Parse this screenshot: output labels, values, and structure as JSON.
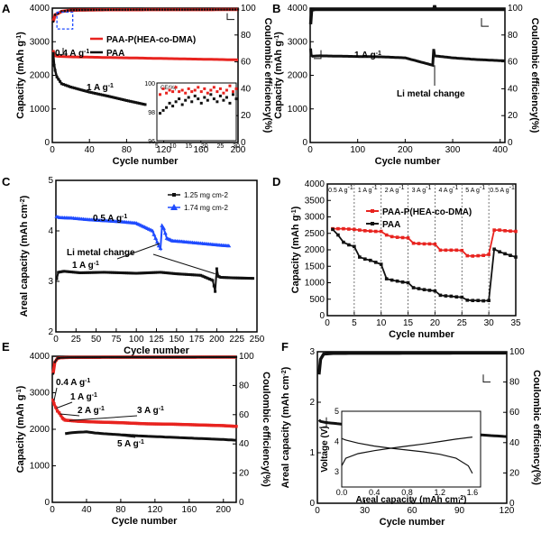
{
  "colors": {
    "red": "#e8231f",
    "black": "#111111",
    "blue": "#1f4bff",
    "axis": "#000000"
  },
  "chart_data": [
    {
      "panel": "A",
      "type": "line",
      "xlabel": "Cycle number",
      "ylabel": "Capacity (mAh g-1)",
      "y2label": "Coulombic efficiency(%)",
      "xlim": [
        0,
        200
      ],
      "ylim": [
        0,
        4000
      ],
      "y2lim": [
        0,
        100
      ],
      "xticks": [
        "0",
        "40",
        "80",
        "120",
        "160",
        "200"
      ],
      "yticks": [
        "0",
        "1000",
        "2000",
        "3000",
        "4000"
      ],
      "y2ticks": [
        "0",
        "20",
        "40",
        "60",
        "80",
        "100"
      ],
      "series": [
        {
          "name": "PAA-P(HEA-co-DMA)",
          "color": "#e8231f",
          "x": [
            1,
            2,
            3,
            5,
            10,
            20,
            40,
            60,
            80,
            100,
            120,
            140,
            160,
            180,
            200
          ],
          "y": [
            2750,
            2620,
            2580,
            2570,
            2560,
            2550,
            2540,
            2530,
            2520,
            2510,
            2500,
            2490,
            2480,
            2470,
            2460
          ]
        },
        {
          "name": "PAA",
          "color": "#111111",
          "x": [
            1,
            2,
            3,
            5,
            10,
            20,
            40,
            60,
            80,
            100
          ],
          "y": [
            2650,
            2300,
            2150,
            1950,
            1750,
            1650,
            1500,
            1380,
            1250,
            1130
          ]
        }
      ],
      "ce": {
        "x": [
          1,
          3,
          6,
          10,
          20,
          60,
          100,
          140,
          200
        ],
        "y": [
          90,
          95,
          96,
          97.5,
          98.5,
          98.8,
          98.9,
          98.9,
          99
        ]
      },
      "annotations": [
        "0.4 A g-1",
        "1 A g-1"
      ],
      "inset": {
        "ylabel": "CE(%)",
        "xlim": [
          5,
          30
        ],
        "ylim": [
          96,
          100
        ],
        "xticks": [
          "5",
          "10",
          "15",
          "20",
          "25",
          "30"
        ],
        "yticks": [
          "96",
          "98",
          "100"
        ],
        "red": [
          [
            6,
            99.2
          ],
          [
            7,
            99.6
          ],
          [
            8,
            99.3
          ],
          [
            9,
            99.5
          ],
          [
            10,
            99.4
          ],
          [
            11,
            99.7
          ],
          [
            12,
            99.4
          ],
          [
            13,
            99.5
          ],
          [
            14,
            99.3
          ],
          [
            15,
            99.6
          ],
          [
            16,
            99.4
          ],
          [
            17,
            99.5
          ],
          [
            18,
            99.7
          ],
          [
            19,
            99.4
          ],
          [
            20,
            99.6
          ],
          [
            21,
            99.3
          ],
          [
            22,
            99.5
          ],
          [
            23,
            99.7
          ],
          [
            24,
            99.4
          ],
          [
            25,
            99.6
          ],
          [
            26,
            99.3
          ],
          [
            27,
            99.5
          ],
          [
            28,
            99.8
          ],
          [
            29,
            99.4
          ],
          [
            30,
            99.6
          ]
        ],
        "black": [
          [
            6,
            97.9
          ],
          [
            7,
            98.1
          ],
          [
            8,
            98.3
          ],
          [
            9,
            98.6
          ],
          [
            10,
            98.4
          ],
          [
            11,
            98.7
          ],
          [
            12,
            98.9
          ],
          [
            13,
            98.5
          ],
          [
            14,
            98.8
          ],
          [
            15,
            99.0
          ],
          [
            16,
            98.7
          ],
          [
            17,
            99.1
          ],
          [
            18,
            98.9
          ],
          [
            19,
            98.6
          ],
          [
            20,
            99.0
          ],
          [
            21,
            98.8
          ],
          [
            22,
            99.2
          ],
          [
            23,
            98.9
          ],
          [
            24,
            98.7
          ],
          [
            25,
            99.1
          ],
          [
            26,
            98.8
          ],
          [
            27,
            99.0
          ],
          [
            28,
            98.6
          ],
          [
            29,
            99.2
          ],
          [
            30,
            98.9
          ]
        ]
      }
    },
    {
      "panel": "B",
      "type": "line",
      "xlabel": "Cycle number",
      "ylabel": "Capacity (mAh g-1)",
      "y2label": "Coulombic efficiency(%)",
      "xlim": [
        0,
        410
      ],
      "ylim": [
        0,
        4000
      ],
      "y2lim": [
        0,
        100
      ],
      "xticks": [
        "0",
        "100",
        "200",
        "300",
        "400"
      ],
      "yticks": [
        "0",
        "1000",
        "2000",
        "3000",
        "4000"
      ],
      "y2ticks": [
        "0",
        "20",
        "40",
        "60",
        "80",
        "100"
      ],
      "capacity": {
        "x": [
          1,
          2,
          5,
          20,
          60,
          100,
          150,
          200,
          258,
          260,
          262,
          300,
          350,
          410
        ],
        "y": [
          2800,
          2600,
          2570,
          2580,
          2570,
          2560,
          2550,
          2520,
          2300,
          2780,
          2580,
          2520,
          2470,
          2430
        ]
      },
      "ce": {
        "x": [
          1,
          3,
          10,
          260,
          262,
          264,
          410
        ],
        "y": [
          88,
          98.5,
          99,
          99,
          102,
          99,
          99
        ]
      },
      "annotations": [
        "1 A g-1",
        "Li metal change"
      ]
    },
    {
      "panel": "C",
      "type": "line",
      "xlabel": "Cycle number",
      "ylabel": "Areal capacity (mAh cm-2)",
      "xlim": [
        0,
        250
      ],
      "ylim": [
        2,
        5
      ],
      "xticks": [
        "0",
        "25",
        "50",
        "75",
        "100",
        "125",
        "150",
        "175",
        "200",
        "225",
        "250"
      ],
      "yticks": [
        "2",
        "3",
        "4",
        "5"
      ],
      "series": [
        {
          "name": "1.25 mg cm-2",
          "color": "#111111",
          "x": [
            1,
            3,
            10,
            30,
            60,
            100,
            130,
            150,
            180,
            195,
            198,
            200,
            202,
            205,
            220,
            245
          ],
          "y": [
            3.05,
            3.18,
            3.2,
            3.17,
            3.18,
            3.16,
            3.18,
            3.15,
            3.12,
            3.02,
            2.8,
            3.25,
            3.1,
            3.08,
            3.07,
            3.06
          ]
        },
        {
          "name": "1.74 mg cm-2",
          "color": "#1f4bff",
          "x": [
            1,
            5,
            20,
            40,
            60,
            80,
            100,
            120,
            128,
            130,
            132,
            134,
            138,
            145,
            160,
            180,
            200,
            215
          ],
          "y": [
            4.28,
            4.26,
            4.25,
            4.22,
            4.2,
            4.18,
            4.15,
            4.0,
            3.7,
            3.65,
            4.1,
            4.05,
            3.85,
            3.8,
            3.78,
            3.75,
            3.72,
            3.7
          ]
        }
      ],
      "annotations": [
        "0.5 A g-1",
        "1 A g-1",
        "Li metal change"
      ]
    },
    {
      "panel": "D",
      "type": "line",
      "xlabel": "Cycle number",
      "ylabel": "Capacity (mAh g-1)",
      "xlim": [
        0,
        35
      ],
      "ylim": [
        0,
        4000
      ],
      "xticks": [
        "0",
        "5",
        "10",
        "15",
        "20",
        "25",
        "30",
        "35"
      ],
      "yticks": [
        "0",
        "500",
        "1000",
        "1500",
        "2000",
        "2500",
        "3000",
        "3500",
        "4000"
      ],
      "rates": [
        "0.5 A g-1",
        "1 A g-1",
        "2 A g-1",
        "3 A g-1",
        "4 A g-1",
        "5 A g-1",
        "0.5 A g-1"
      ],
      "series": [
        {
          "name": "PAA-P(HEA-co-DMA)",
          "color": "#e8231f",
          "x": [
            1,
            2,
            3,
            4,
            5,
            6,
            7,
            8,
            9,
            10,
            11,
            12,
            13,
            14,
            15,
            16,
            17,
            18,
            19,
            20,
            21,
            22,
            23,
            24,
            25,
            26,
            27,
            28,
            29,
            30,
            31,
            32,
            33,
            34,
            35
          ],
          "y": [
            2640,
            2640,
            2640,
            2630,
            2620,
            2600,
            2580,
            2570,
            2560,
            2560,
            2450,
            2400,
            2380,
            2370,
            2360,
            2200,
            2190,
            2180,
            2180,
            2170,
            1990,
            1990,
            1990,
            1990,
            1980,
            1820,
            1810,
            1820,
            1830,
            1860,
            2600,
            2600,
            2580,
            2570,
            2560
          ]
        },
        {
          "name": "PAA",
          "color": "#111111",
          "x": [
            1,
            2,
            3,
            4,
            5,
            6,
            7,
            8,
            9,
            10,
            11,
            12,
            13,
            14,
            15,
            16,
            17,
            18,
            19,
            20,
            21,
            22,
            23,
            24,
            25,
            26,
            27,
            28,
            29,
            30,
            31,
            32,
            33,
            34,
            35
          ],
          "y": [
            2620,
            2450,
            2230,
            2150,
            2100,
            1780,
            1720,
            1680,
            1620,
            1560,
            1120,
            1080,
            1050,
            1020,
            1000,
            850,
            820,
            790,
            770,
            750,
            620,
            600,
            590,
            570,
            560,
            470,
            460,
            460,
            450,
            460,
            2020,
            1940,
            1880,
            1830,
            1780
          ]
        }
      ]
    },
    {
      "panel": "E",
      "type": "line",
      "xlabel": "Cycle number",
      "ylabel": "Capacity (mAh g-1)",
      "y2label": "Coulombic efficiency(%)",
      "xlim": [
        0,
        215
      ],
      "ylim": [
        0,
        4000
      ],
      "y2lim": [
        0,
        100
      ],
      "xticks": [
        "0",
        "40",
        "80",
        "120",
        "160",
        "200"
      ],
      "yticks": [
        "0",
        "1000",
        "2000",
        "3000",
        "4000"
      ],
      "y2ticks": [
        "0",
        "20",
        "40",
        "60",
        "80",
        "100"
      ],
      "series": [
        {
          "name": "red",
          "color": "#e8231f",
          "x": [
            1,
            2,
            4,
            6,
            8,
            10,
            12,
            15,
            20,
            30,
            50,
            80,
            110,
            140,
            170,
            200,
            215
          ],
          "y": [
            2800,
            2700,
            2600,
            2500,
            2450,
            2380,
            2300,
            2250,
            2240,
            2220,
            2200,
            2180,
            2150,
            2140,
            2120,
            2100,
            2080
          ]
        },
        {
          "name": "black",
          "color": "#111111",
          "x": [
            15,
            20,
            30,
            40,
            50,
            60,
            80,
            100,
            120,
            140,
            160,
            180,
            200,
            215
          ],
          "y": [
            1880,
            1900,
            1920,
            1930,
            1900,
            1880,
            1850,
            1820,
            1800,
            1780,
            1760,
            1740,
            1720,
            1700
          ]
        }
      ],
      "ce": {
        "x": [
          1,
          3,
          6,
          10,
          20,
          60,
          120,
          215
        ],
        "y": [
          88,
          96,
          98.5,
          99,
          99.2,
          99.3,
          99.3,
          99.4
        ]
      },
      "annotations": [
        "0.4 A g-1",
        "1 A g-1",
        "2 A g-1",
        "3 A g-1",
        "5 A g-1"
      ]
    },
    {
      "panel": "F",
      "type": "line",
      "xlabel": "Cycle number",
      "ylabel": "Areal capacity (mAh cm-2)",
      "y2label": "Coulombic efficiency(%)",
      "xlim": [
        0,
        120
      ],
      "ylim": [
        0,
        3
      ],
      "y2lim": [
        0,
        100
      ],
      "xticks": [
        "0",
        "30",
        "60",
        "90",
        "120"
      ],
      "yticks": [
        "0",
        "1",
        "2",
        "3"
      ],
      "y2ticks": [
        "0",
        "20",
        "40",
        "60",
        "80",
        "100"
      ],
      "capacity": {
        "x": [
          1,
          2,
          5,
          20,
          40,
          60,
          80,
          100,
          120
        ],
        "y": [
          1.65,
          1.62,
          1.6,
          1.55,
          1.5,
          1.45,
          1.4,
          1.36,
          1.32
        ]
      },
      "ce": {
        "x": [
          1,
          2,
          4,
          10,
          120
        ],
        "y": [
          85,
          95,
          98.5,
          99,
          99.2
        ]
      },
      "inset": {
        "xlabel": "Areal capacity (mAh cm-2)",
        "ylabel": "Voltage (V)",
        "xlim": [
          0,
          1.7
        ],
        "ylim": [
          2.5,
          5
        ],
        "xticks": [
          "0.0",
          "0.4",
          "0.8",
          "1.2",
          "1.6"
        ],
        "yticks": [
          "3",
          "4",
          "5"
        ],
        "charge": {
          "x": [
            0,
            0.05,
            0.2,
            0.4,
            0.6,
            0.8,
            1.0,
            1.2,
            1.4,
            1.6
          ],
          "y": [
            3.2,
            3.45,
            3.6,
            3.7,
            3.78,
            3.85,
            3.92,
            4.0,
            4.08,
            4.15
          ]
        },
        "discharge": {
          "x": [
            0,
            0.05,
            0.2,
            0.4,
            0.6,
            0.8,
            1.0,
            1.2,
            1.4,
            1.55,
            1.6
          ],
          "y": [
            4.1,
            4.05,
            3.95,
            3.85,
            3.78,
            3.72,
            3.66,
            3.58,
            3.45,
            3.2,
            2.95
          ]
        }
      }
    }
  ]
}
